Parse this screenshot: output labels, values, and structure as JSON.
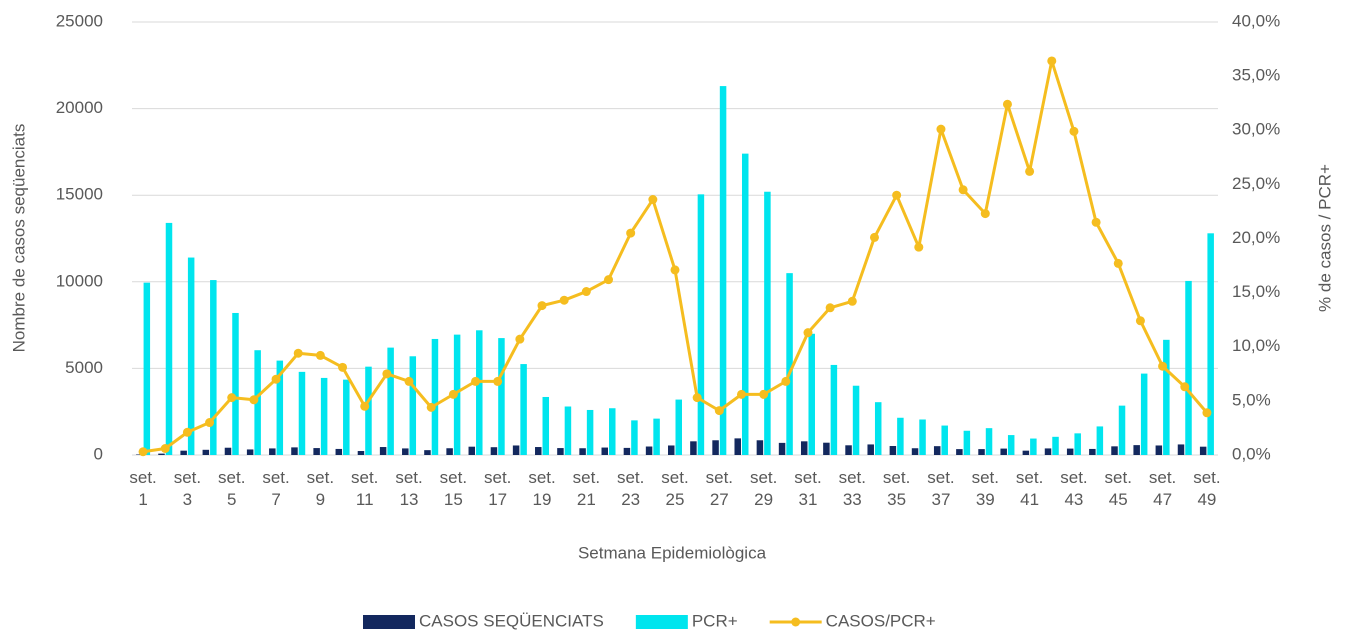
{
  "chart_data": {
    "type": "bar-line",
    "x_label": "Setmana Epidemiològica",
    "y_label": "Nombre de casos seqüenciats",
    "y2_label": "% de casos / PCR+",
    "categories": [
      "set. 1",
      null,
      "set. 3",
      null,
      "set. 5",
      null,
      "set. 7",
      null,
      "set. 9",
      null,
      "set. 11",
      null,
      "set. 13",
      null,
      "set. 15",
      null,
      "set. 17",
      null,
      "set. 19",
      null,
      "set. 21",
      null,
      "set. 23",
      null,
      "set. 25",
      null,
      "set. 27",
      null,
      "set. 29",
      null,
      "set. 31",
      null,
      "set. 33",
      null,
      "set. 35",
      null,
      "set. 37",
      null,
      "set. 39",
      null,
      "set. 41",
      null,
      "set. 43",
      null,
      "set. 45",
      null,
      "set. 47",
      null,
      "set. 49"
    ],
    "series": [
      {
        "name": "CASOS SEQÜENCIATS",
        "type": "bar",
        "color": "#13285e",
        "values": [
          30,
          80,
          250,
          300,
          420,
          320,
          380,
          440,
          400,
          350,
          230,
          460,
          380,
          280,
          390,
          480,
          450,
          550,
          460,
          400,
          390,
          430,
          410,
          490,
          550,
          790,
          850,
          960,
          850,
          700,
          790,
          710,
          560,
          610,
          520,
          390,
          510,
          340,
          340,
          370,
          250,
          380,
          370,
          350,
          500,
          570,
          550,
          610,
          480
        ]
      },
      {
        "name": "PCR+",
        "type": "bar",
        "color": "#00e5ee",
        "values": [
          9950,
          13400,
          11400,
          10100,
          8200,
          6050,
          5450,
          4800,
          4450,
          4350,
          5100,
          6200,
          5700,
          6700,
          6950,
          7200,
          6750,
          5250,
          3350,
          2800,
          2600,
          2700,
          2000,
          2100,
          3200,
          15050,
          21300,
          17400,
          15200,
          10500,
          7000,
          5200,
          4000,
          3050,
          2150,
          2050,
          1700,
          1400,
          1550,
          1150,
          950,
          1050,
          1250,
          1650,
          2850,
          4700,
          6650,
          10050,
          12800
        ]
      },
      {
        "name": "CASOS/PCR+",
        "type": "line",
        "axis": "y2",
        "color": "#f5bd1f",
        "values": [
          0.3,
          0.6,
          2.1,
          3.0,
          5.3,
          5.1,
          7.0,
          9.4,
          9.2,
          8.1,
          4.5,
          7.5,
          6.8,
          4.4,
          5.6,
          6.8,
          6.8,
          10.7,
          13.8,
          14.3,
          15.1,
          16.2,
          20.5,
          23.6,
          17.1,
          5.3,
          4.1,
          5.6,
          5.6,
          6.8,
          11.3,
          13.6,
          14.2,
          20.1,
          24.0,
          19.2,
          30.1,
          24.5,
          22.3,
          32.4,
          26.2,
          36.4,
          29.9,
          21.5,
          17.7,
          12.4,
          8.2,
          6.3,
          3.9
        ]
      }
    ],
    "ylim": [
      0,
      25000
    ],
    "yticks": [
      0,
      5000,
      10000,
      15000,
      20000,
      25000
    ],
    "y2lim": [
      0,
      40
    ],
    "y2ticks": [
      {
        "value": 0,
        "label": "0,0%"
      },
      {
        "value": 5,
        "label": "5,0%"
      },
      {
        "value": 10,
        "label": "10,0%"
      },
      {
        "value": 15,
        "label": "15,0%"
      },
      {
        "value": 20,
        "label": "20,0%"
      },
      {
        "value": 25,
        "label": "25,0%"
      },
      {
        "value": 30,
        "label": "30,0%"
      },
      {
        "value": 35,
        "label": "35,0%"
      },
      {
        "value": 40,
        "label": "40,0%"
      }
    ],
    "grid": true,
    "legend": "bottom"
  }
}
